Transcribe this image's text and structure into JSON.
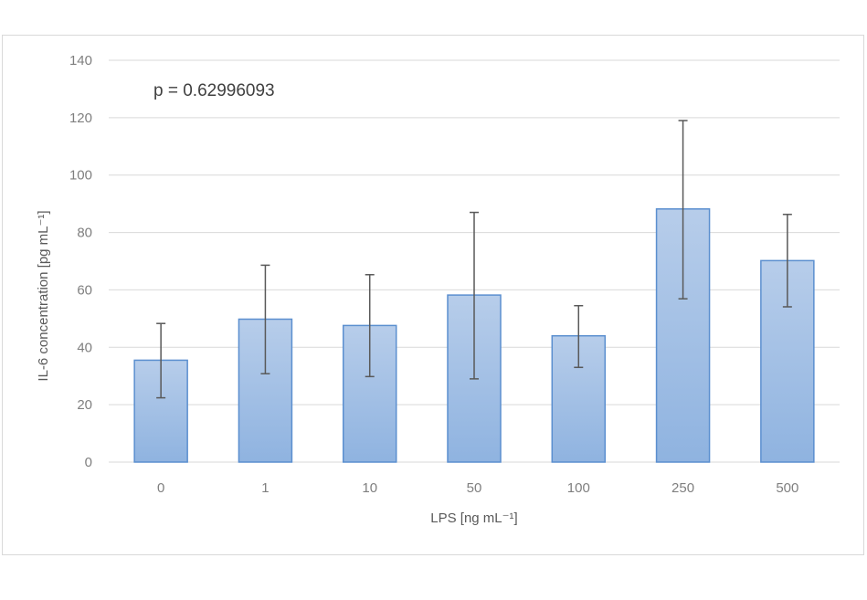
{
  "chart_data": {
    "type": "bar",
    "categories": [
      "0",
      "1",
      "10",
      "50",
      "100",
      "250",
      "500"
    ],
    "values": [
      35.5,
      49.8,
      47.6,
      58.2,
      44.0,
      88.2,
      70.2
    ],
    "error_high": [
      48.3,
      68.6,
      65.3,
      87.0,
      54.5,
      119.0,
      86.3
    ],
    "error_low": [
      22.4,
      30.8,
      29.8,
      29.0,
      33.0,
      56.9,
      54.1
    ],
    "xlabel": "LPS [ng mL⁻¹]",
    "ylabel": "IL-6 concentration [pg mL⁻¹]",
    "ylim": [
      0,
      140
    ],
    "yticks": [
      "0",
      "20",
      "40",
      "60",
      "80",
      "100",
      "120",
      "140"
    ],
    "annotation": "p = 0.62996093",
    "grid": true,
    "legend": "none",
    "colors": {
      "bar_top": "#b7cdea",
      "bar_bottom": "#8fb3e0",
      "bar_edge": "#5b8fcf",
      "error_bar": "#595959",
      "grid": "#d9d9d9",
      "tick_text": "#7f7f7f",
      "axis_title": "#595959",
      "annotation": "#404040"
    }
  }
}
